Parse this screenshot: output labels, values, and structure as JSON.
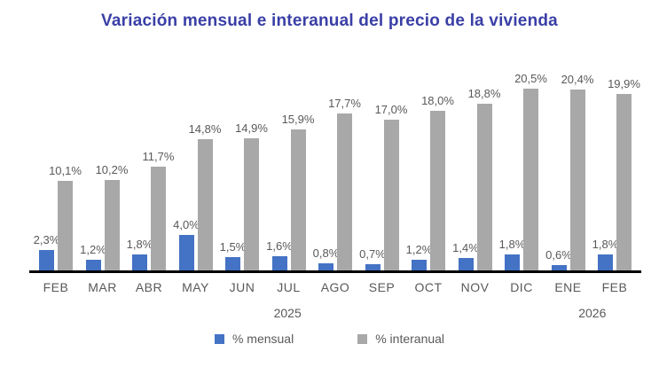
{
  "title": "Variación mensual e interanual del precio de la vivienda",
  "colors": {
    "title": "#3a3fa6",
    "bar_mensual": "#4472C4",
    "bar_interanual": "#A8A8A8",
    "label_text": "#595959",
    "axis_line": "#000000"
  },
  "chart_data": {
    "type": "bar",
    "categories": [
      "FEB",
      "MAR",
      "ABR",
      "MAY",
      "JUN",
      "JUL",
      "AGO",
      "SEP",
      "OCT",
      "NOV",
      "DIC",
      "ENE",
      "FEB"
    ],
    "series": [
      {
        "name": "% mensual",
        "color": "#4472C4",
        "values": [
          2.3,
          1.2,
          1.8,
          4.0,
          1.5,
          1.6,
          0.8,
          0.7,
          1.2,
          1.4,
          1.8,
          0.6,
          1.8
        ],
        "labels": [
          "2,3%",
          "1,2%",
          "1,8%",
          "4,0%",
          "1,5%",
          "1,6%",
          "0,8%",
          "0,7%",
          "1,2%",
          "1,4%",
          "1,8%",
          "0,6%",
          "1,8%"
        ]
      },
      {
        "name": "% interanual",
        "color": "#A8A8A8",
        "values": [
          10.1,
          10.2,
          11.7,
          14.8,
          14.9,
          15.9,
          17.7,
          17.0,
          18.0,
          18.8,
          20.5,
          20.4,
          19.9
        ],
        "labels": [
          "10,1%",
          "10,2%",
          "11,7%",
          "14,8%",
          "14,9%",
          "15,9%",
          "17,7%",
          "17,0%",
          "18,0%",
          "18,8%",
          "20,5%",
          "20,4%",
          "19,9%"
        ]
      }
    ],
    "year_labels": [
      {
        "label": "2025",
        "position_pct": 42.2
      },
      {
        "label": "2026",
        "position_pct": 92.0
      }
    ],
    "ylim": [
      0,
      20.5
    ],
    "grid": false,
    "axis_line_visible": true,
    "legend_position": "bottom"
  },
  "legend": {
    "items": [
      {
        "label": "% mensual",
        "color": "#4472C4"
      },
      {
        "label": "% interanual",
        "color": "#A8A8A8"
      }
    ]
  }
}
